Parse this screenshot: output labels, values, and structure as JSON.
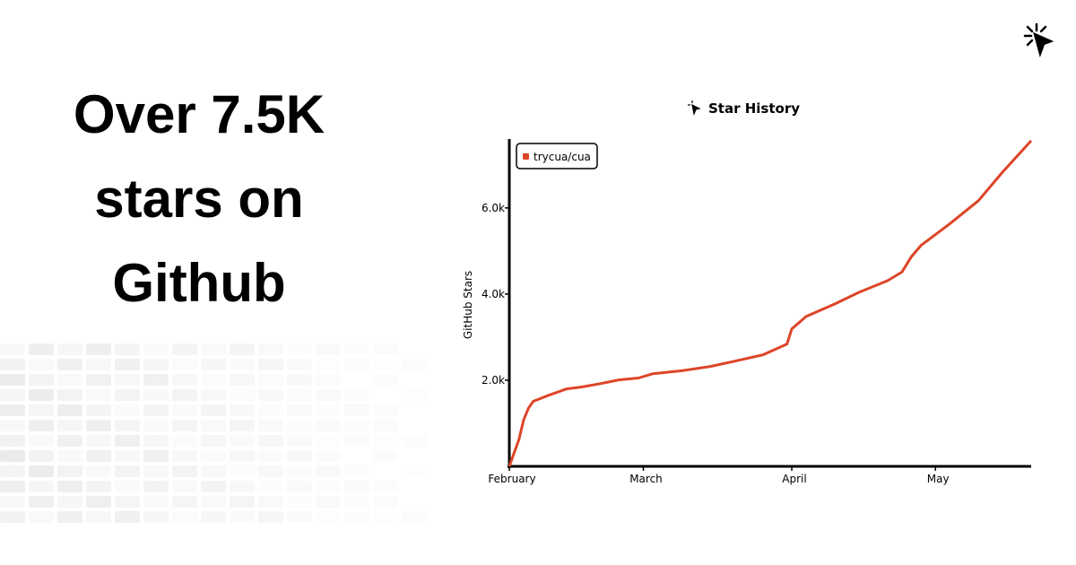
{
  "headline": [
    "Over 7.5K",
    "stars on",
    "Github"
  ],
  "chart_data": {
    "type": "line",
    "title": "Star History",
    "ylabel": "GitHub Stars",
    "x": [
      0,
      1,
      2,
      3,
      4,
      5,
      8,
      12,
      15,
      19,
      23,
      27,
      30,
      36,
      42,
      47,
      53,
      58,
      59,
      62,
      68,
      73,
      79,
      82,
      84,
      86,
      92,
      98,
      103,
      109
    ],
    "xlim": [
      0,
      109
    ],
    "xticks": [
      {
        "value": 0,
        "label": "February"
      },
      {
        "value": 28,
        "label": "March"
      },
      {
        "value": 59,
        "label": "April"
      },
      {
        "value": 89,
        "label": "May"
      }
    ],
    "ylim": [
      0,
      7600
    ],
    "yticks": [
      {
        "value": 2000,
        "label": "2.0k"
      },
      {
        "value": 4000,
        "label": "4.0k"
      },
      {
        "value": 6000,
        "label": "6.0k"
      }
    ],
    "series": [
      {
        "name": "trycua/cua",
        "color": "#dd4528",
        "values": [
          0,
          310,
          620,
          1080,
          1350,
          1510,
          1640,
          1800,
          1840,
          1920,
          2010,
          2050,
          2150,
          2220,
          2320,
          2440,
          2590,
          2840,
          3190,
          3480,
          3770,
          4040,
          4310,
          4510,
          4870,
          5130,
          5630,
          6170,
          6830,
          7560
        ]
      }
    ],
    "legend": "upper left"
  }
}
